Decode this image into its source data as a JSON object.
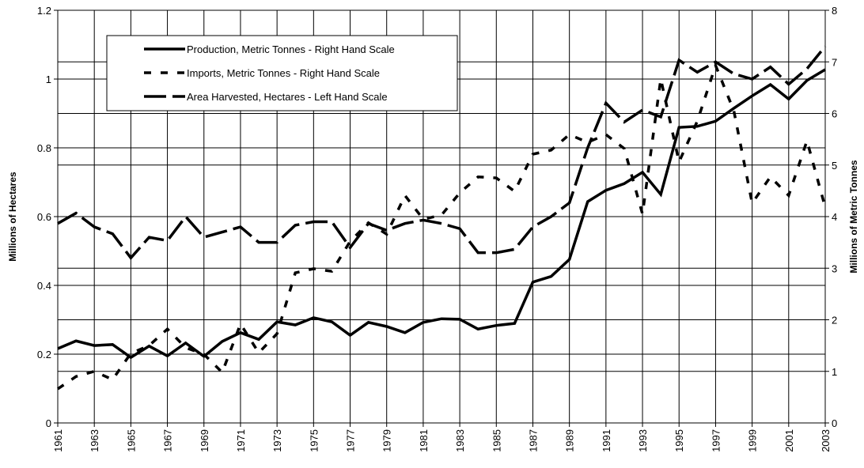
{
  "chart_data": {
    "type": "line",
    "ylabel": "Millions of Hectares",
    "y2label": "Millions of Metric Tonnes",
    "x": [
      1961,
      1962,
      1963,
      1964,
      1965,
      1966,
      1967,
      1968,
      1969,
      1970,
      1971,
      1972,
      1973,
      1974,
      1975,
      1976,
      1977,
      1978,
      1979,
      1980,
      1981,
      1982,
      1983,
      1984,
      1985,
      1986,
      1987,
      1988,
      1989,
      1990,
      1991,
      1992,
      1993,
      1994,
      1995,
      1996,
      1997,
      1998,
      1999,
      2000,
      2001,
      2002,
      2003
    ],
    "xlim": [
      1961,
      2003
    ],
    "xticks": [
      1961,
      1963,
      1965,
      1967,
      1969,
      1971,
      1973,
      1975,
      1977,
      1979,
      1981,
      1983,
      1985,
      1987,
      1989,
      1991,
      1993,
      1995,
      1997,
      1999,
      2001,
      2003
    ],
    "ylim": [
      0,
      1.2
    ],
    "yticks": [
      0,
      0.2,
      0.4,
      0.6,
      0.8,
      1,
      1.2
    ],
    "y2lim": [
      0,
      8
    ],
    "y2ticks": [
      0,
      1,
      2,
      3,
      4,
      5,
      6,
      7,
      8
    ],
    "grid": true,
    "series": [
      {
        "name": "Production, Metric Tonnes - Right Hand Scale",
        "color": "#000000",
        "axis": "y2",
        "dash": "none",
        "values": [
          1.44,
          1.59,
          1.5,
          1.52,
          1.27,
          1.49,
          1.3,
          1.55,
          1.29,
          1.58,
          1.75,
          1.62,
          1.96,
          1.9,
          2.04,
          1.96,
          1.7,
          1.95,
          1.87,
          1.75,
          1.95,
          2.02,
          2.01,
          1.82,
          1.89,
          1.93,
          2.73,
          2.84,
          3.17,
          4.29,
          4.51,
          4.64,
          4.86,
          4.43,
          5.73,
          5.75,
          5.85,
          6.1,
          6.34,
          6.56,
          6.28,
          6.64,
          6.85
        ]
      },
      {
        "name": "Imports, Metric Tonnes - Right Hand Scale",
        "color": "#000000",
        "axis": "y2",
        "dash": "9,12",
        "values": [
          0.66,
          0.9,
          1.0,
          0.84,
          1.35,
          1.5,
          1.82,
          1.46,
          1.33,
          0.98,
          1.92,
          1.36,
          1.73,
          2.91,
          2.99,
          2.94,
          3.52,
          3.88,
          3.66,
          4.41,
          3.95,
          4.03,
          4.46,
          4.77,
          4.75,
          4.49,
          5.21,
          5.29,
          5.59,
          5.44,
          5.59,
          5.32,
          4.05,
          6.67,
          5.06,
          5.85,
          6.93,
          6.05,
          4.26,
          4.77,
          4.41,
          5.47,
          4.18
        ]
      },
      {
        "name": "Area Harvested, Hectares - Left Hand Scale",
        "color": "#000000",
        "axis": "y",
        "dash": "28,8",
        "values": [
          0.58,
          0.61,
          0.57,
          0.55,
          0.48,
          0.54,
          0.53,
          0.6,
          0.54,
          0.555,
          0.57,
          0.525,
          0.525,
          0.575,
          0.585,
          0.585,
          0.51,
          0.58,
          0.56,
          0.58,
          0.59,
          0.58,
          0.565,
          0.495,
          0.495,
          0.505,
          0.57,
          0.6,
          0.64,
          0.8,
          0.93,
          0.875,
          0.91,
          0.89,
          1.055,
          1.02,
          1.05,
          1.015,
          1.0,
          1.035,
          0.985,
          1.03,
          1.095
        ]
      }
    ]
  }
}
